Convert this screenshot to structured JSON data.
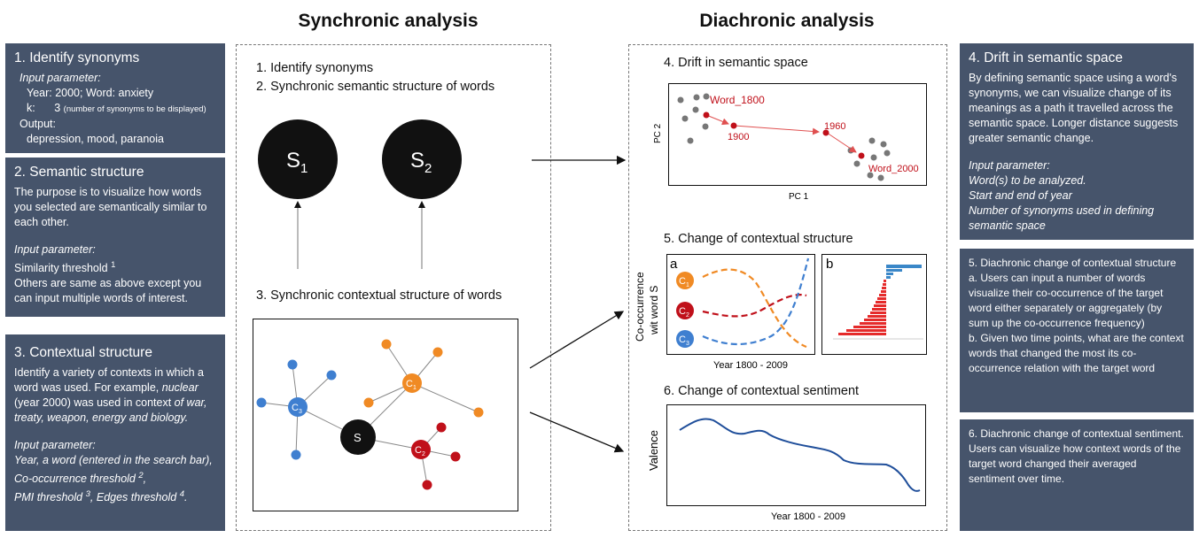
{
  "headings": {
    "synchronic": "Synchronic analysis",
    "diachronic": "Diachronic analysis"
  },
  "card1": {
    "title": "1.   Identify synonyms",
    "input_label": "Input parameter:",
    "year_line": "Year:    2000; Word: anxiety",
    "k_label": "k:",
    "k_value": "3",
    "k_note": "(number of synonyms to be displayed)",
    "output_label": "Output:",
    "output_value": "depression, mood, paranoia"
  },
  "card2": {
    "title": "2.   Semantic structure",
    "body": "The purpose is to visualize how words you selected are semantically similar to each other.",
    "input_label": "Input parameter:",
    "threshold": "Similarity threshold",
    "threshold_sup": "1",
    "others": "Others are same as above except you can input multiple words of interest."
  },
  "card3": {
    "title": "3.   Contextual structure",
    "body_start": "Identify a variety of contexts in which a word was used. For example, ",
    "body_word": "nuclear",
    "body_mid": " (year 2000) was used in context ",
    "body_ctx": "of war, treaty, weapon, energy and biology.",
    "input_label": "Input parameter:",
    "param1": "Year, a word (entered in the search bar),",
    "param2": "Co-occurrence threshold",
    "param2_sup": "2",
    "param3": "PMI threshold",
    "param3_sup": "3",
    "param3b": ", Edges threshold",
    "param3b_sup": "4"
  },
  "card4": {
    "title": "4.   Drift in semantic space",
    "body": "By defining semantic space using a word's synonyms, we can visualize change of its meanings as a path it travelled across the semantic space.  Longer distance suggests greater semantic change.",
    "input_label": "Input parameter:",
    "p1": "Word(s) to be analyzed.",
    "p2": "Start and end of year",
    "p3": "Number of synonyms used in defining semantic space"
  },
  "card5": {
    "title": "5.   Diachronic change of contextual structure",
    "a": "a. Users can input a number of words visualize their co-occurrence of the target word either separately or aggregately (by sum up the co-occurrence frequency)",
    "b": "b. Given two time points, what are the context words that changed the most its co-occurrence relation with the target word"
  },
  "card6": {
    "title": "6.   Diachronic change of contextual sentiment.",
    "body": "Users can visualize how context words of the target word changed their averaged sentiment over time."
  },
  "sync": {
    "step1": "1. Identify synonyms",
    "step2": "2. Synchronic semantic structure of words",
    "step3": "3. Synchronic contextual structure of words",
    "s1": "S",
    "s1_sub": "1",
    "s2": "S",
    "s2_sub": "2",
    "s": "S",
    "c": "C",
    "c1_sub": "1",
    "c2_sub": "2",
    "c3_sub": "3"
  },
  "diac": {
    "step4": "4. Drift in semantic space",
    "step5": "5. Change of contextual structure",
    "step6": "6. Change of contextual sentiment",
    "pc1": "PC 1",
    "pc2": "PC 2",
    "word1800": "Word_1800",
    "y1900": "1900",
    "y1960": "1960",
    "word2000": "Word_2000",
    "cooc_label1": "Co-occurrence",
    "cooc_label2": "wit word S",
    "panel_a": "a",
    "panel_b": "b",
    "year_range": "Year 1800 - 2009",
    "valence": "Valence",
    "year_range2": "Year 1800 - 2009"
  },
  "colors": {
    "card": "#46546b",
    "orange": "#f08a24",
    "red": "#c0101a",
    "blue": "#3f7fd0",
    "line_blue": "#1f4e9a"
  }
}
